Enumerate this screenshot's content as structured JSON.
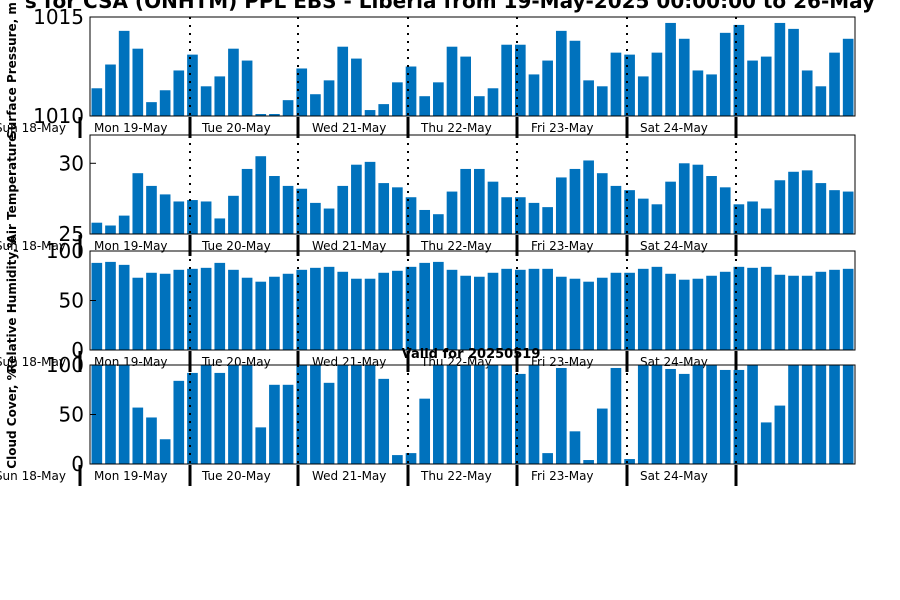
{
  "page": {
    "title": "s for CSA (ONHTM) PPL EBS  - Liberia from 19-May-2025 00:00:00 to 26-May",
    "subtitle": "Valid for 20250519"
  },
  "chart_data": [
    {
      "type": "bar",
      "ylabel": "Surface Pressure, m",
      "ylim": [
        1010,
        1015
      ],
      "yticks": [
        1010,
        1015
      ],
      "first_tick": "Sun 18-May",
      "values": [
        1011.4,
        1012.6,
        1014.3,
        1013.4,
        1010.7,
        1011.3,
        1012.3,
        1013.1,
        1011.5,
        1012.0,
        1013.4,
        1012.8,
        1010.1,
        1010.1,
        1010.8,
        1012.4,
        1011.1,
        1011.8,
        1013.5,
        1012.9,
        1010.3,
        1010.6,
        1011.7,
        1012.5,
        1011.0,
        1011.7,
        1013.5,
        1013.0,
        1011.0,
        1011.4,
        1013.6,
        1013.6,
        1012.1,
        1012.8,
        1014.3,
        1013.8,
        1011.8,
        1011.5,
        1013.2,
        1013.1,
        1012.0,
        1013.2,
        1014.7,
        1013.9,
        1012.3,
        1012.1,
        1014.2,
        1014.6,
        1012.8,
        1013.0,
        1014.7,
        1014.4,
        1012.3,
        1011.5,
        1013.2,
        1013.9
      ]
    },
    {
      "type": "bar",
      "ylabel": "Air Temperature",
      "ylim": [
        25,
        32
      ],
      "yticks": [
        25,
        30
      ],
      "first_tick": "Sun 18-May",
      "values": [
        25.8,
        25.6,
        26.3,
        29.3,
        28.4,
        27.8,
        27.3,
        27.4,
        27.3,
        26.1,
        27.7,
        29.6,
        30.5,
        29.1,
        28.4,
        28.2,
        27.2,
        26.8,
        28.4,
        29.9,
        30.1,
        28.6,
        28.3,
        27.6,
        26.7,
        26.4,
        28.0,
        29.6,
        29.6,
        28.7,
        27.6,
        27.6,
        27.2,
        26.9,
        29.0,
        29.6,
        30.2,
        29.3,
        28.4,
        28.1,
        27.5,
        27.1,
        28.7,
        30.0,
        29.9,
        29.1,
        28.3,
        27.1,
        27.3,
        26.8,
        28.8,
        29.4,
        29.5,
        28.6,
        28.1,
        28.0
      ]
    },
    {
      "type": "bar",
      "ylabel": "Relative Humidity,%",
      "ylim": [
        0,
        100
      ],
      "yticks": [
        0,
        50,
        100
      ],
      "first_tick": "Sun 18-May",
      "values": [
        88,
        89,
        86,
        73,
        78,
        77,
        81,
        82,
        83,
        88,
        81,
        73,
        69,
        74,
        77,
        81,
        83,
        84,
        79,
        72,
        72,
        78,
        80,
        84,
        88,
        89,
        81,
        75,
        74,
        78,
        82,
        81,
        82,
        82,
        74,
        72,
        69,
        73,
        78,
        78,
        82,
        84,
        77,
        71,
        72,
        75,
        79,
        84,
        83,
        84,
        76,
        75,
        75,
        79,
        81,
        82
      ]
    },
    {
      "type": "bar",
      "ylabel": "Cloud Cover, %",
      "ylim": [
        0,
        100
      ],
      "yticks": [
        0,
        50,
        100
      ],
      "first_tick": "Sun 18-May",
      "values": [
        100,
        100,
        100,
        57,
        47,
        25,
        84,
        92,
        100,
        92,
        100,
        100,
        37,
        80,
        80,
        100,
        100,
        82,
        100,
        100,
        100,
        86,
        9,
        11,
        66,
        100,
        100,
        100,
        100,
        100,
        100,
        91,
        100,
        11,
        97,
        33,
        4,
        56,
        97,
        5,
        100,
        100,
        96,
        91,
        100,
        100,
        95,
        95,
        100,
        42,
        59,
        100,
        100,
        100,
        100,
        100
      ]
    }
  ],
  "x_axis": {
    "day_labels": [
      "Mon 19-May",
      "Tue 20-May",
      "Wed 21-May",
      "Thu 22-May",
      "Fri 23-May",
      "Sat 24-May"
    ]
  }
}
